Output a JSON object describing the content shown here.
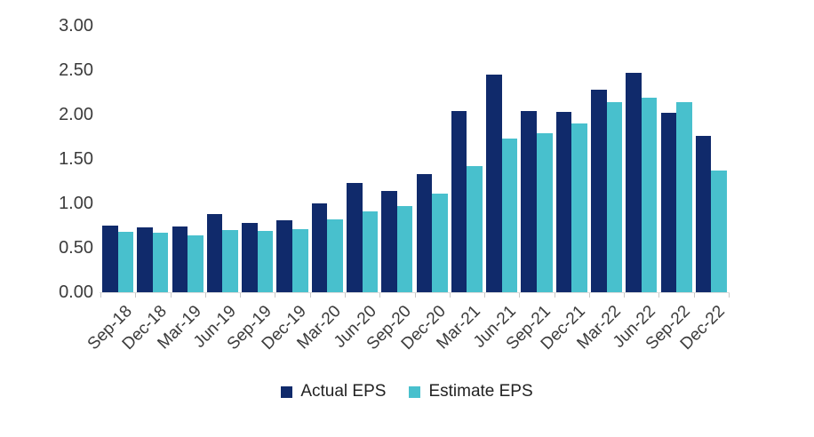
{
  "chart_data": {
    "type": "bar",
    "title": "",
    "xlabel": "",
    "ylabel": "",
    "categories": [
      "Sep-18",
      "Dec-18",
      "Mar-19",
      "Jun-19",
      "Sep-19",
      "Dec-19",
      "Mar-20",
      "Jun-20",
      "Sep-20",
      "Dec-20",
      "Mar-21",
      "Jun-21",
      "Sep-21",
      "Dec-21",
      "Mar-22",
      "Jun-22",
      "Sep-22",
      "Dec-22"
    ],
    "series": [
      {
        "name": "Actual EPS",
        "color": "#102a6b",
        "values": [
          0.75,
          0.73,
          0.74,
          0.88,
          0.78,
          0.81,
          1.0,
          1.23,
          1.14,
          1.33,
          2.04,
          2.45,
          2.04,
          2.03,
          2.28,
          2.47,
          2.02,
          1.76
        ]
      },
      {
        "name": "Estimate EPS",
        "color": "#48c0cd",
        "values": [
          0.68,
          0.67,
          0.64,
          0.7,
          0.69,
          0.71,
          0.82,
          0.91,
          0.97,
          1.11,
          1.42,
          1.73,
          1.79,
          1.9,
          2.14,
          2.19,
          2.14,
          1.37
        ]
      }
    ],
    "ylim": [
      0,
      3
    ],
    "y_ticks": [
      "3.00",
      "2.50",
      "2.00",
      "1.50",
      "1.00",
      "0.50",
      "0.00"
    ],
    "grid": "off",
    "legend_position": "bottom-center",
    "axis_line_color": "#dcdcdc",
    "tick_color": "#c8c8c8",
    "axis_label_color": "#3b3b3b"
  },
  "legend": {
    "actual_label": "Actual EPS",
    "estimate_label": "Estimate EPS"
  }
}
